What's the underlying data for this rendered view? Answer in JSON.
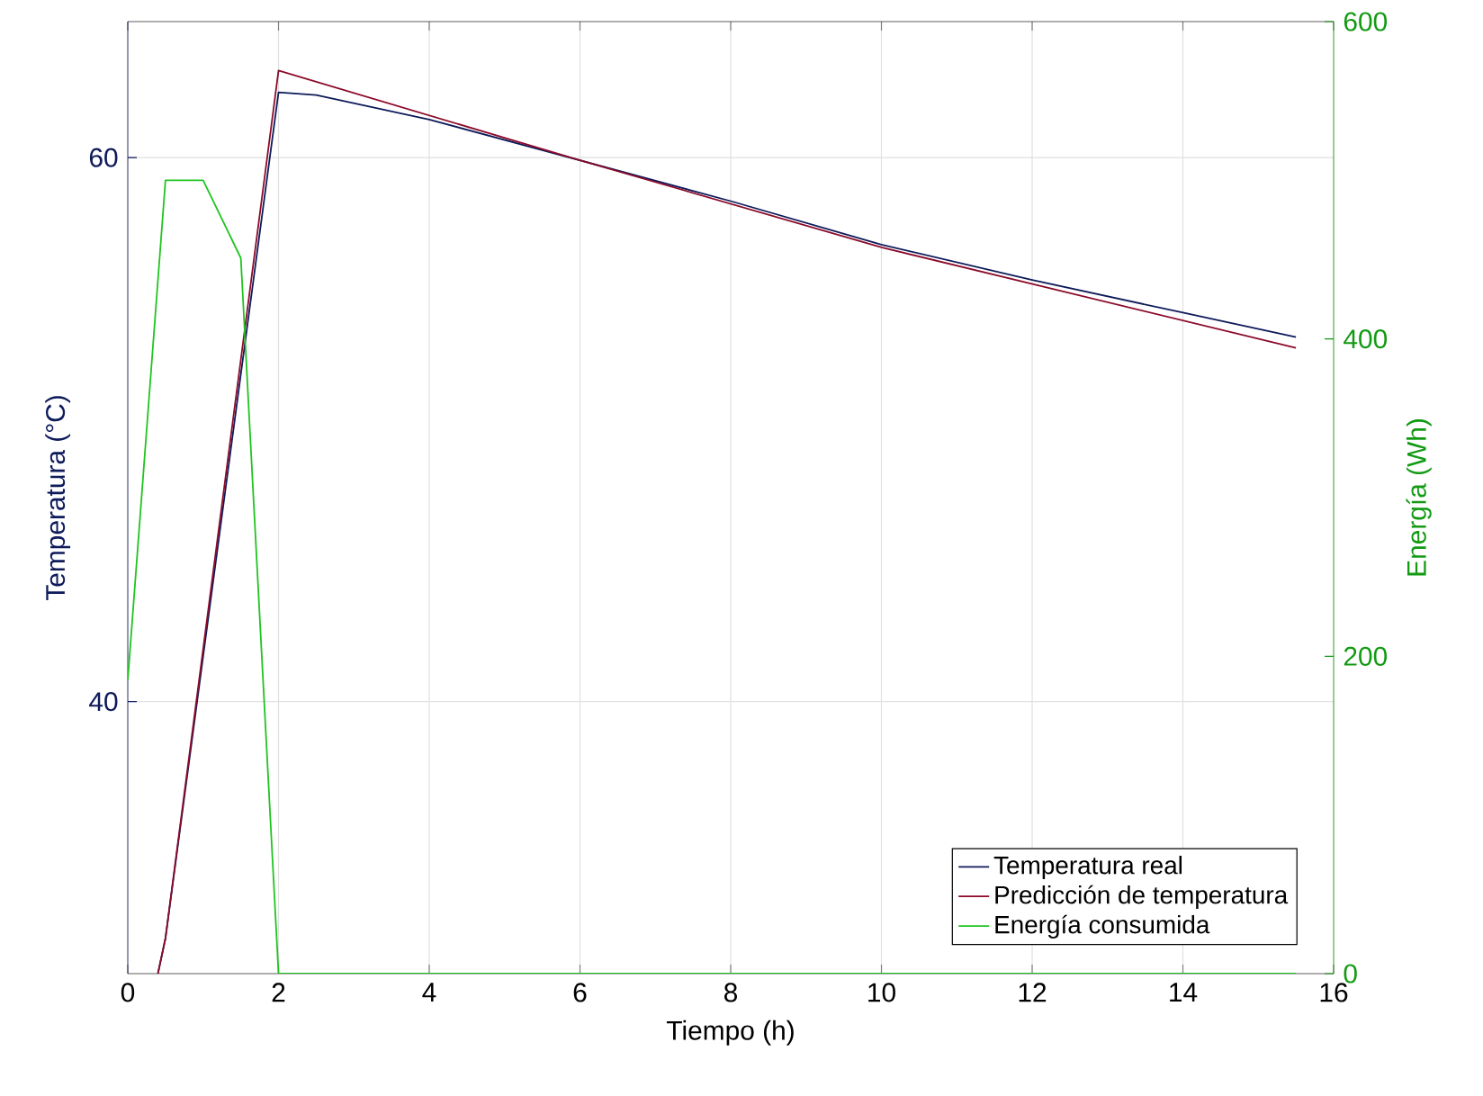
{
  "chart_data": {
    "type": "line",
    "xlabel": "Tiempo (h)",
    "ylabel": "Temperatura (°C)",
    "y2label": "Energía (Wh)",
    "xlim": [
      0,
      16
    ],
    "xticks": [
      0,
      2,
      4,
      6,
      8,
      10,
      12,
      14,
      16
    ],
    "ylim": [
      30,
      65
    ],
    "yticks": [
      40,
      60
    ],
    "y2lim": [
      0,
      600
    ],
    "y2ticks": [
      0,
      200,
      400,
      600
    ],
    "grid": true,
    "legend": "bottom right",
    "line_style": "solid",
    "series": [
      {
        "name": "Temperatura real",
        "color": "#0e1b5a",
        "x": [
          0.4,
          0.5,
          2,
          2.5,
          4,
          6,
          8,
          10,
          12,
          14,
          15.5
        ],
        "values": [
          30,
          31.3,
          62.4,
          62.3,
          61.4,
          59.9,
          58.4,
          56.8,
          55.5,
          54.3,
          53.4
        ]
      },
      {
        "name": "Predicción de temperatura",
        "color": "#8b0a2a",
        "x": [
          0.4,
          0.5,
          2,
          6,
          10,
          15.5
        ],
        "values": [
          30,
          31.3,
          63.2,
          59.9,
          56.7,
          53.0
        ]
      },
      {
        "name": "Energía consumida",
        "color": "#1fc41f",
        "axis": "y2",
        "x": [
          0,
          0.5,
          1,
          1.5,
          2,
          15.5
        ],
        "values": [
          185,
          500,
          500,
          451,
          0,
          0
        ]
      }
    ]
  }
}
